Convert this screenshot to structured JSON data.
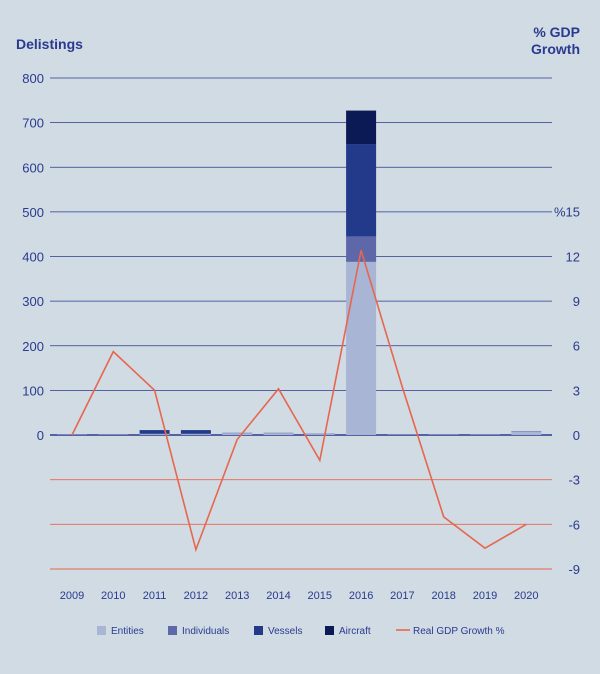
{
  "chart_data": {
    "type": "bar",
    "left_axis_title": "Delistings",
    "right_axis_title_line1": "% GDP",
    "right_axis_title_line2": "Growth",
    "categories": [
      "2009",
      "2010",
      "2011",
      "2012",
      "2013",
      "2014",
      "2015",
      "2016",
      "2017",
      "2018",
      "2019",
      "2020"
    ],
    "left_ticks": [
      "0",
      "100",
      "200",
      "300",
      "400",
      "500",
      "600",
      "700",
      "800"
    ],
    "right_ticks": [
      "-9",
      "-6",
      "-3",
      "0",
      "3",
      "6",
      "9",
      "12",
      "%15"
    ],
    "ylim_left": [
      0,
      800
    ],
    "ylim_right": [
      -9,
      15
    ],
    "series": [
      {
        "name": "Entities",
        "color": "#a8b5d4",
        "values": [
          1,
          1,
          2,
          2,
          4,
          4,
          2,
          388,
          1,
          1,
          1,
          8
        ]
      },
      {
        "name": "Individuals",
        "color": "#5e67a8",
        "values": [
          1,
          1,
          1,
          1,
          1,
          1,
          1,
          57,
          1,
          1,
          1,
          1
        ]
      },
      {
        "name": "Vessels",
        "color": "#233a8a",
        "values": [
          0,
          0,
          8,
          8,
          0,
          0,
          0,
          207,
          0,
          0,
          0,
          0
        ]
      },
      {
        "name": "Aircraft",
        "color": "#0b1a55",
        "values": [
          0,
          0,
          0,
          0,
          0,
          0,
          0,
          75,
          0,
          0,
          0,
          0
        ]
      }
    ],
    "line_series": {
      "name": "Real GDP Growth %",
      "color": "#e8664e",
      "values": [
        0,
        5.6,
        3.0,
        -7.7,
        -0.3,
        3.1,
        -1.7,
        12.4,
        3.2,
        -5.5,
        -7.6,
        -6.0
      ]
    }
  }
}
